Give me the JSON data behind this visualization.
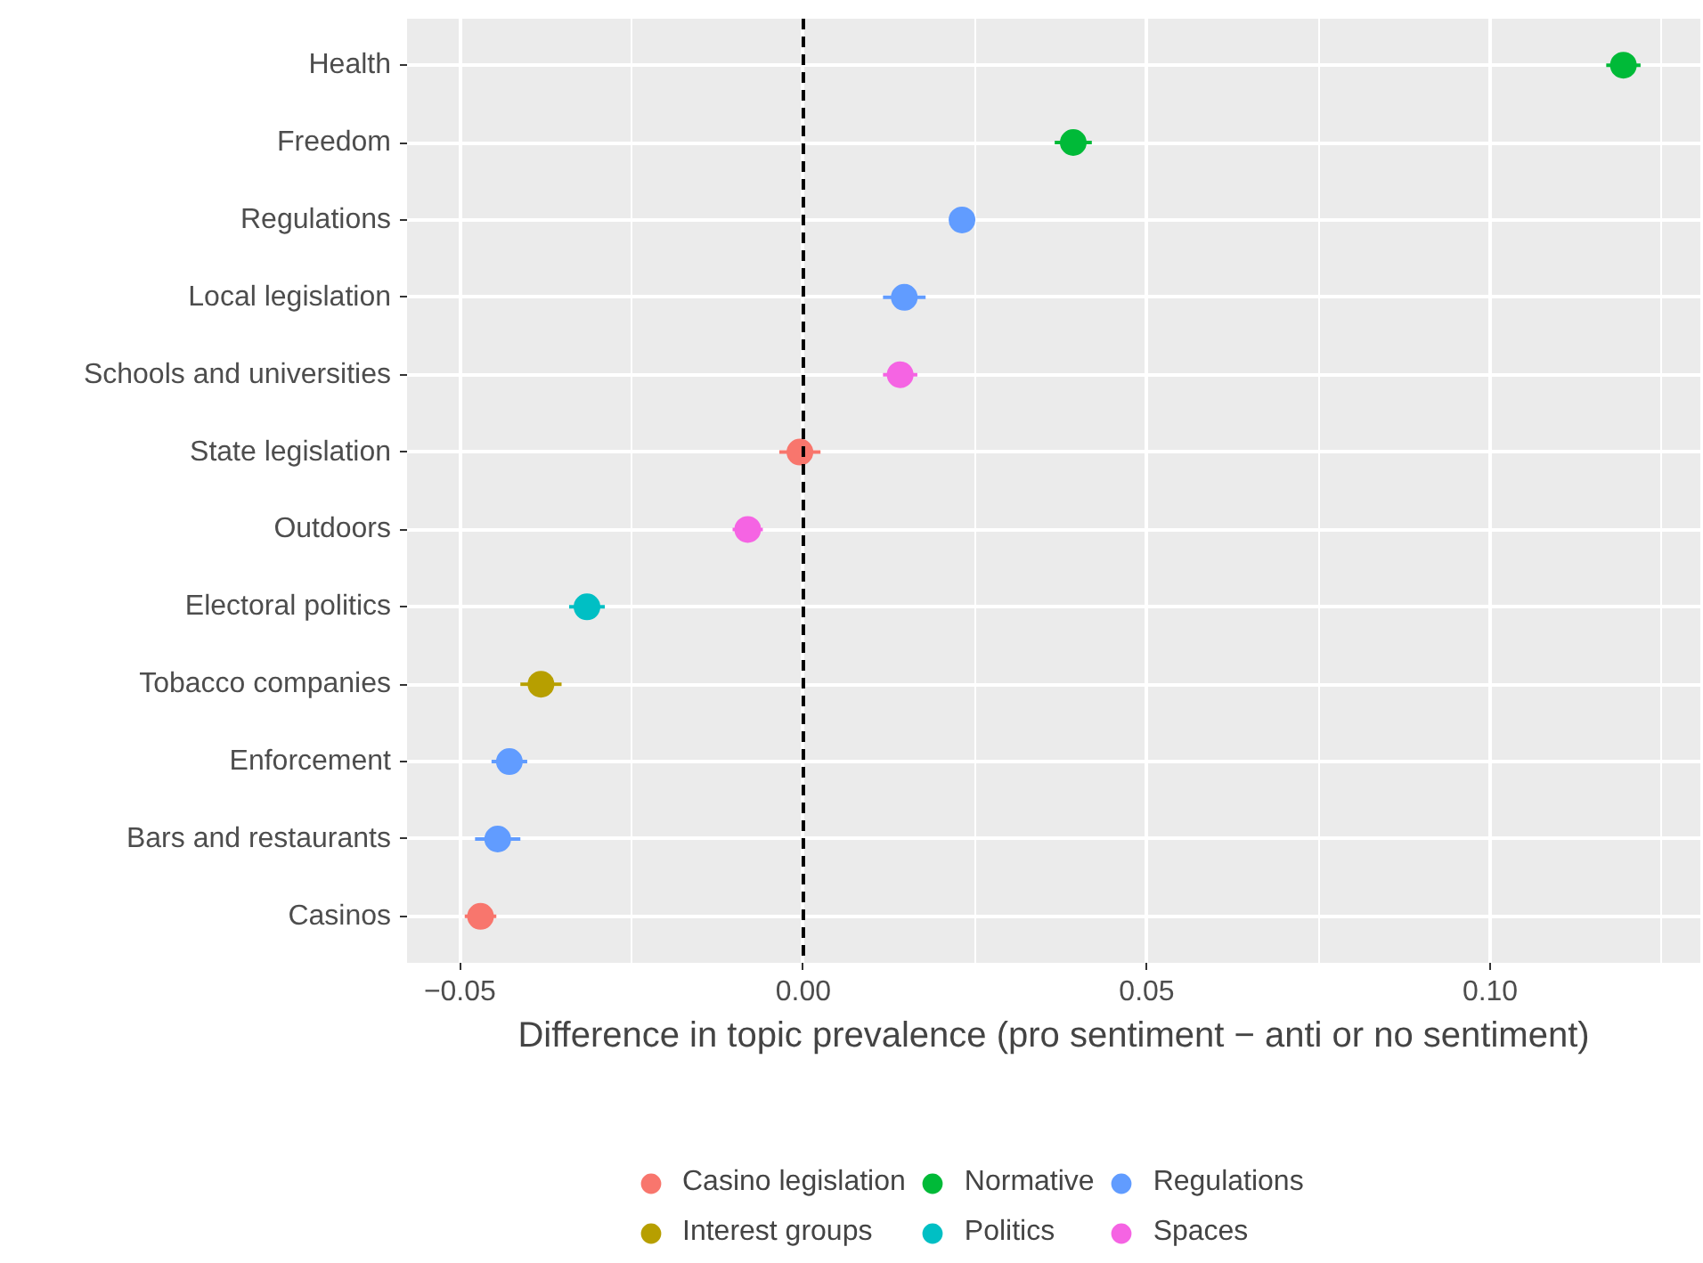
{
  "chart_data": {
    "type": "scatter",
    "orientation": "horizontal",
    "xlabel": "Difference in topic prevalence (pro sentiment − anti or no sentiment)",
    "categories": [
      "Health",
      "Freedom",
      "Regulations",
      "Local legislation",
      "Schools and universities",
      "State legislation",
      "Outdoors",
      "Electoral politics",
      "Tobacco companies",
      "Enforcement",
      "Bars and restaurants",
      "Casinos"
    ],
    "series": [
      {
        "name": "Casino legislation",
        "color": "#f8766d",
        "values": [
          null,
          null,
          null,
          null,
          null,
          -0.0005,
          null,
          null,
          null,
          null,
          null,
          -0.047
        ],
        "errors": [
          null,
          null,
          null,
          null,
          null,
          0.003,
          null,
          null,
          null,
          null,
          null,
          0.0023
        ]
      },
      {
        "name": "Interest groups",
        "color": "#b79f00",
        "values": [
          null,
          null,
          null,
          null,
          null,
          null,
          null,
          null,
          -0.0382,
          null,
          null,
          null
        ],
        "errors": [
          null,
          null,
          null,
          null,
          null,
          null,
          null,
          null,
          0.003,
          null,
          null,
          null
        ]
      },
      {
        "name": "Normative",
        "color": "#00ba38",
        "values": [
          0.1194,
          0.0393,
          null,
          null,
          null,
          null,
          null,
          null,
          null,
          null,
          null,
          null
        ],
        "errors": [
          0.0025,
          0.0027,
          null,
          null,
          null,
          null,
          null,
          null,
          null,
          null,
          null,
          null
        ]
      },
      {
        "name": "Politics",
        "color": "#00bfc4",
        "values": [
          null,
          null,
          null,
          null,
          null,
          null,
          null,
          -0.0315,
          null,
          null,
          null,
          null
        ],
        "errors": [
          null,
          null,
          null,
          null,
          null,
          null,
          null,
          0.0026,
          null,
          null,
          null,
          null
        ]
      },
      {
        "name": "Regulations",
        "color": "#619cff",
        "values": [
          null,
          null,
          0.0231,
          0.0147,
          null,
          null,
          null,
          null,
          null,
          -0.0428,
          -0.0445,
          null
        ],
        "errors": [
          null,
          null,
          0.0015,
          0.0031,
          null,
          null,
          null,
          null,
          null,
          0.0026,
          0.0033,
          null
        ]
      },
      {
        "name": "Spaces",
        "color": "#f564e3",
        "values": [
          null,
          null,
          null,
          null,
          0.0141,
          null,
          -0.0081,
          null,
          null,
          null,
          null,
          null
        ],
        "errors": [
          null,
          null,
          null,
          null,
          0.0025,
          null,
          0.0022,
          null,
          null,
          null,
          null,
          null
        ]
      }
    ],
    "xlim": [
      -0.0577,
      0.1306
    ],
    "xticks": [
      {
        "value": -0.05,
        "label": "−0.05"
      },
      {
        "value": 0,
        "label": "0.00"
      },
      {
        "value": 0.05,
        "label": "0.05"
      },
      {
        "value": 0.1,
        "label": "0.10"
      }
    ],
    "ref_lines": [
      {
        "axis": "x",
        "value": 0,
        "color": "#000000",
        "line_style": "dashed"
      }
    ],
    "grid": true,
    "legend": "bottom",
    "marker": "circle"
  }
}
